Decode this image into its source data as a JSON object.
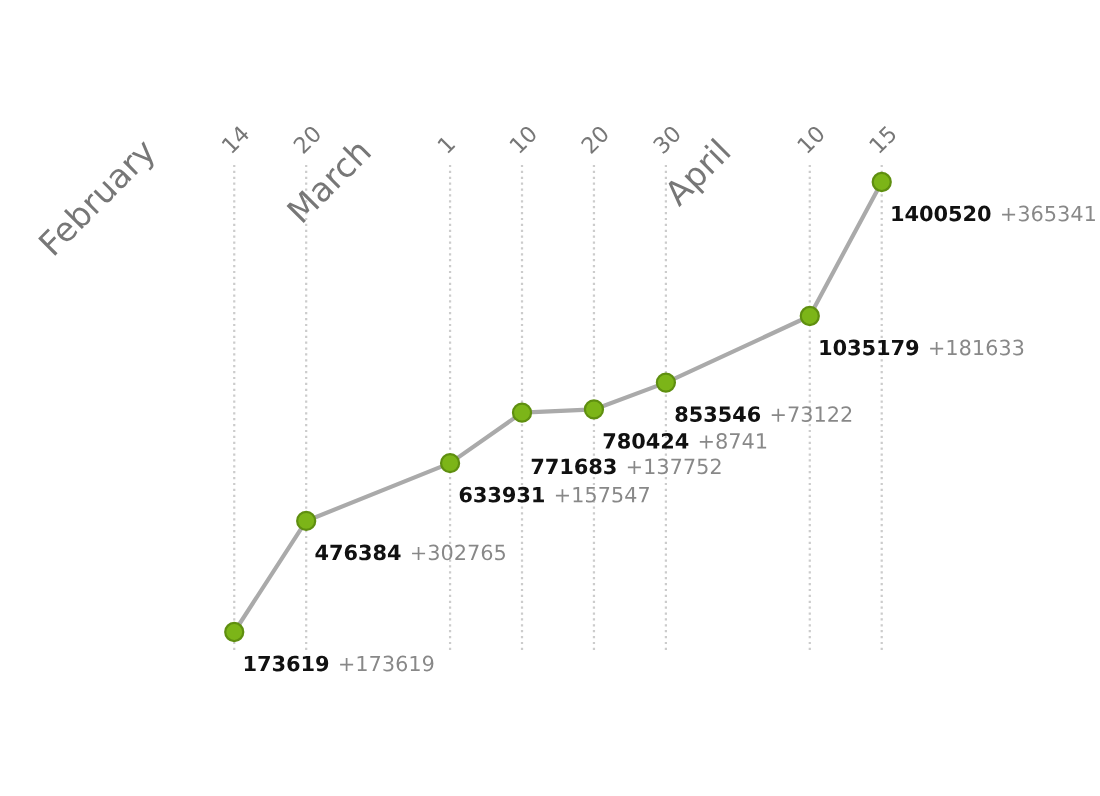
{
  "chart_data": {
    "type": "line",
    "categories": [
      "February",
      "14",
      "20",
      "March",
      "1",
      "10",
      "20",
      "30",
      "April",
      "10",
      "15"
    ],
    "values": [
      null,
      173619,
      476384,
      null,
      633931,
      771683,
      780424,
      853546,
      null,
      1035179,
      1400520
    ],
    "value_labels": [
      null,
      "173619 +173619",
      "476384 +302765",
      null,
      "633931 +157547",
      "771683 +137752",
      "780424 +8741",
      "853546 +73122",
      null,
      "1035179 +181633",
      "1400520 +365341"
    ],
    "color": "#aaaaaa",
    "colors": [
      null,
      "#7cb518",
      "#7cb518",
      null,
      "#7cb518",
      "#7cb518",
      "#7cb518",
      "#7cb518",
      null,
      "#7cb518",
      "#7cb518"
    ],
    "marker": "circle",
    "grid": "x"
  }
}
